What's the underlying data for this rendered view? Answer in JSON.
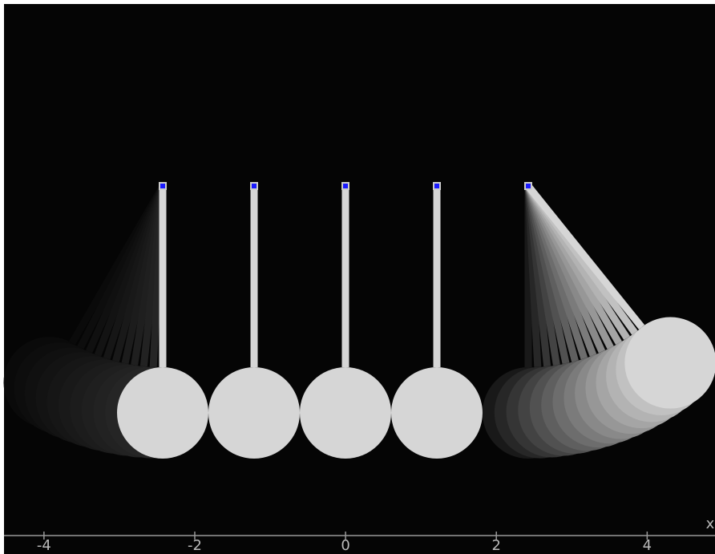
{
  "axis": {
    "label": "x",
    "xlim": [
      -4.53,
      4.9
    ],
    "ticks": [
      -4,
      -2,
      0,
      2,
      4
    ]
  }
}
